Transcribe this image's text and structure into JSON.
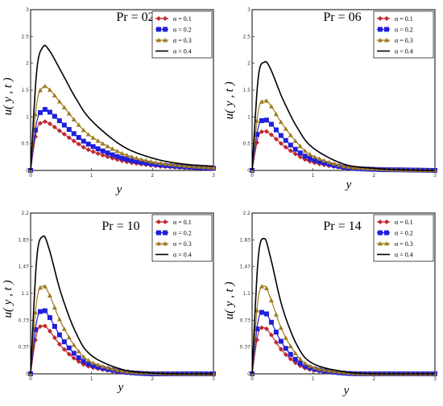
{
  "chart_data": [
    {
      "type": "line",
      "title": "Pr = 02",
      "xlabel": "y",
      "ylabel": "u( y , t )",
      "xlim": [
        0,
        3
      ],
      "ylim": [
        0,
        3
      ],
      "xticks": [
        "0",
        "1",
        "2",
        "3"
      ],
      "yticks": [
        "0",
        "0.5",
        "1",
        "1.5",
        "2",
        "2.5",
        "3"
      ],
      "legend_position": "top-right",
      "series": [
        {
          "name": "α = 0.1",
          "color": "#c0272d",
          "marker": "diamond",
          "x": [
            0,
            0.1,
            0.2,
            0.3,
            0.5,
            0.75,
            1.0,
            1.5,
            2.0,
            2.5,
            3.0
          ],
          "y": [
            0,
            0.75,
            0.9,
            0.88,
            0.72,
            0.52,
            0.36,
            0.18,
            0.09,
            0.05,
            0.03
          ]
        },
        {
          "name": "α = 0.2",
          "color": "#1f1fdc",
          "marker": "square",
          "x": [
            0,
            0.1,
            0.2,
            0.3,
            0.5,
            0.75,
            1.0,
            1.5,
            2.0,
            2.5,
            3.0
          ],
          "y": [
            0,
            0.9,
            1.12,
            1.1,
            0.9,
            0.65,
            0.46,
            0.23,
            0.12,
            0.07,
            0.04
          ]
        },
        {
          "name": "α = 0.3",
          "color": "#a07a1e",
          "marker": "triangle",
          "x": [
            0,
            0.1,
            0.2,
            0.3,
            0.5,
            0.75,
            1.0,
            1.5,
            2.0,
            2.5,
            3.0
          ],
          "y": [
            0,
            1.25,
            1.55,
            1.52,
            1.25,
            0.9,
            0.63,
            0.32,
            0.16,
            0.09,
            0.05
          ]
        },
        {
          "name": "α = 0.4",
          "color": "#000000",
          "marker": "none",
          "x": [
            0,
            0.1,
            0.2,
            0.3,
            0.5,
            0.75,
            1.0,
            1.5,
            2.0,
            2.5,
            3.0
          ],
          "y": [
            0,
            1.85,
            2.3,
            2.25,
            1.85,
            1.33,
            0.93,
            0.46,
            0.23,
            0.12,
            0.08
          ]
        }
      ]
    },
    {
      "type": "line",
      "title": "Pr = 06",
      "xlabel": "y",
      "ylabel": "u( y , t )",
      "xlim": [
        0,
        3
      ],
      "ylim": [
        0,
        3
      ],
      "xticks": [
        "0",
        "1",
        "2",
        "3"
      ],
      "yticks": [
        "0",
        "0.5",
        "1",
        "1.5",
        "2",
        "2.5",
        "3"
      ],
      "legend_position": "top-right",
      "series": [
        {
          "name": "α = 0.1",
          "color": "#c0272d",
          "marker": "diamond",
          "x": [
            0,
            0.1,
            0.2,
            0.3,
            0.5,
            0.75,
            1.0,
            1.5,
            2.0,
            2.5,
            3.0
          ],
          "y": [
            0,
            0.62,
            0.73,
            0.68,
            0.48,
            0.28,
            0.15,
            0.05,
            0.02,
            0.01,
            0
          ]
        },
        {
          "name": "α = 0.2",
          "color": "#1f1fdc",
          "marker": "square",
          "x": [
            0,
            0.1,
            0.2,
            0.3,
            0.5,
            0.75,
            1.0,
            1.5,
            2.0,
            2.5,
            3.0
          ],
          "y": [
            0,
            0.8,
            0.94,
            0.88,
            0.62,
            0.36,
            0.2,
            0.06,
            0.02,
            0.01,
            0
          ]
        },
        {
          "name": "α = 0.3",
          "color": "#a07a1e",
          "marker": "triangle",
          "x": [
            0,
            0.1,
            0.2,
            0.3,
            0.5,
            0.75,
            1.0,
            1.5,
            2.0,
            2.5,
            3.0
          ],
          "y": [
            0,
            1.1,
            1.3,
            1.22,
            0.86,
            0.5,
            0.27,
            0.08,
            0.03,
            0.01,
            0
          ]
        },
        {
          "name": "α = 0.4",
          "color": "#000000",
          "marker": "none",
          "x": [
            0,
            0.1,
            0.2,
            0.3,
            0.5,
            0.75,
            1.0,
            1.5,
            2.0,
            2.5,
            3.0
          ],
          "y": [
            0,
            1.72,
            2.02,
            1.9,
            1.34,
            0.78,
            0.42,
            0.12,
            0.04,
            0.01,
            0
          ]
        }
      ]
    },
    {
      "type": "line",
      "title": "Pr = 10",
      "xlabel": "y",
      "ylabel": "u( y , t )",
      "xlim": [
        0,
        3
      ],
      "ylim": [
        0,
        2.2
      ],
      "xticks": [
        "0",
        "1",
        "2",
        "3"
      ],
      "yticks": [
        "0",
        "0.37",
        "0.73",
        "1.1",
        "1.47",
        "1.83",
        "2.2"
      ],
      "legend_position": "top-right",
      "series": [
        {
          "name": "α = 0.1",
          "color": "#c0272d",
          "marker": "diamond",
          "x": [
            0,
            0.1,
            0.2,
            0.3,
            0.5,
            0.75,
            1.0,
            1.5,
            2.0,
            2.5,
            3.0
          ],
          "y": [
            0,
            0.55,
            0.66,
            0.6,
            0.38,
            0.19,
            0.09,
            0.02,
            0,
            0,
            0
          ]
        },
        {
          "name": "α = 0.2",
          "color": "#1f1fdc",
          "marker": "square",
          "x": [
            0,
            0.1,
            0.2,
            0.3,
            0.5,
            0.75,
            1.0,
            1.5,
            2.0,
            2.5,
            3.0
          ],
          "y": [
            0,
            0.72,
            0.87,
            0.79,
            0.5,
            0.25,
            0.12,
            0.03,
            0,
            0,
            0
          ]
        },
        {
          "name": "α = 0.3",
          "color": "#a07a1e",
          "marker": "triangle",
          "x": [
            0,
            0.1,
            0.2,
            0.3,
            0.5,
            0.75,
            1.0,
            1.5,
            2.0,
            2.5,
            3.0
          ],
          "y": [
            0,
            1.0,
            1.2,
            1.1,
            0.7,
            0.35,
            0.16,
            0.04,
            0.01,
            0,
            0
          ]
        },
        {
          "name": "α = 0.4",
          "color": "#000000",
          "marker": "none",
          "x": [
            0,
            0.1,
            0.2,
            0.3,
            0.5,
            0.75,
            1.0,
            1.5,
            2.0,
            2.5,
            3.0
          ],
          "y": [
            0,
            1.57,
            1.88,
            1.72,
            1.1,
            0.55,
            0.25,
            0.06,
            0.01,
            0,
            0
          ]
        }
      ]
    },
    {
      "type": "line",
      "title": "Pr = 14",
      "xlabel": "y",
      "ylabel": "u( y , t )",
      "xlim": [
        0,
        3
      ],
      "ylim": [
        0,
        2.2
      ],
      "xticks": [
        "0",
        "1",
        "2",
        "3"
      ],
      "yticks": [
        "0",
        "0.37",
        "0.73",
        "1.1",
        "1.47",
        "1.83",
        "2.2"
      ],
      "legend_position": "top-right",
      "series": [
        {
          "name": "α = 0.1",
          "color": "#c0272d",
          "marker": "diamond",
          "x": [
            0,
            0.1,
            0.2,
            0.3,
            0.5,
            0.75,
            1.0,
            1.5,
            2.0,
            2.5,
            3.0
          ],
          "y": [
            0,
            0.55,
            0.63,
            0.55,
            0.31,
            0.13,
            0.05,
            0.01,
            0,
            0,
            0
          ]
        },
        {
          "name": "α = 0.2",
          "color": "#1f1fdc",
          "marker": "square",
          "x": [
            0,
            0.1,
            0.2,
            0.3,
            0.5,
            0.75,
            1.0,
            1.5,
            2.0,
            2.5,
            3.0
          ],
          "y": [
            0,
            0.73,
            0.84,
            0.73,
            0.41,
            0.17,
            0.07,
            0.01,
            0,
            0,
            0
          ]
        },
        {
          "name": "α = 0.3",
          "color": "#a07a1e",
          "marker": "triangle",
          "x": [
            0,
            0.1,
            0.2,
            0.3,
            0.5,
            0.75,
            1.0,
            1.5,
            2.0,
            2.5,
            3.0
          ],
          "y": [
            0,
            1.03,
            1.2,
            1.04,
            0.58,
            0.24,
            0.09,
            0.02,
            0,
            0,
            0
          ]
        },
        {
          "name": "α = 0.4",
          "color": "#000000",
          "marker": "none",
          "x": [
            0,
            0.1,
            0.2,
            0.3,
            0.5,
            0.75,
            1.0,
            1.5,
            2.0,
            2.5,
            3.0
          ],
          "y": [
            0,
            1.58,
            1.85,
            1.6,
            0.9,
            0.37,
            0.14,
            0.03,
            0,
            0,
            0
          ]
        }
      ]
    }
  ]
}
